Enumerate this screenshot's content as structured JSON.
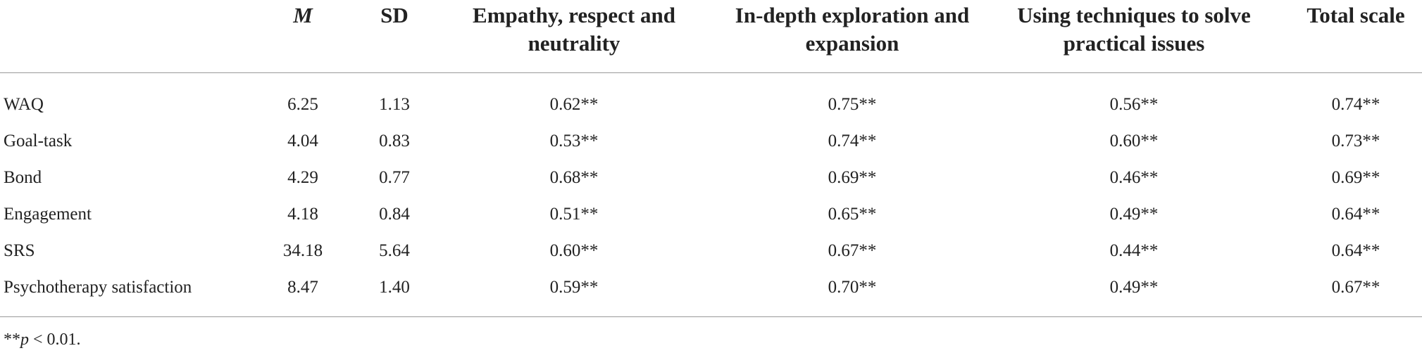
{
  "table": {
    "header": [
      "",
      "M",
      "SD",
      "Empathy, respect and neutrality",
      "In-depth exploration and expansion",
      "Using techniques to solve practical issues",
      "Total scale"
    ],
    "rows": [
      [
        "WAQ",
        "6.25",
        "1.13",
        "0.62**",
        "0.75**",
        "0.56**",
        "0.74**"
      ],
      [
        "Goal-task",
        "4.04",
        "0.83",
        "0.53**",
        "0.74**",
        "0.60**",
        "0.73**"
      ],
      [
        "Bond",
        "4.29",
        "0.77",
        "0.68**",
        "0.69**",
        "0.46**",
        "0.69**"
      ],
      [
        "Engagement",
        "4.18",
        "0.84",
        "0.51**",
        "0.65**",
        "0.49**",
        "0.64**"
      ],
      [
        "SRS",
        "34.18",
        "5.64",
        "0.60**",
        "0.67**",
        "0.44**",
        "0.64**"
      ],
      [
        "Psychotherapy satisfaction",
        "8.47",
        "1.40",
        "0.59**",
        "0.70**",
        "0.49**",
        "0.67**"
      ]
    ],
    "footnote": [
      "**",
      "p",
      " < 0.01."
    ]
  }
}
